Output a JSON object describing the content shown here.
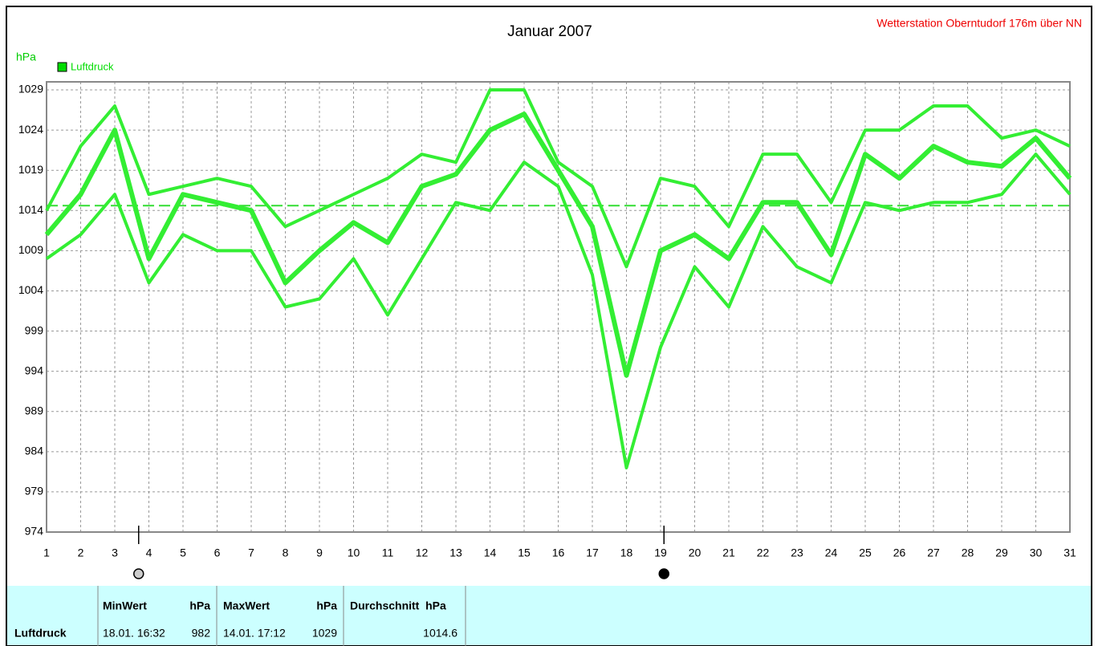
{
  "header": {
    "title": "Januar 2007",
    "station": "Wetterstation Oberntudorf 176m über NN"
  },
  "chart_data": {
    "type": "line",
    "y_label": "hPa",
    "legend": {
      "name": "Luftdruck",
      "color": "#00dd00"
    },
    "x": [
      1,
      2,
      3,
      4,
      5,
      6,
      7,
      8,
      9,
      10,
      11,
      12,
      13,
      14,
      15,
      16,
      17,
      18,
      19,
      20,
      21,
      22,
      23,
      24,
      25,
      26,
      27,
      28,
      29,
      30,
      31
    ],
    "xlim": [
      1,
      31
    ],
    "ylim": [
      974,
      1030
    ],
    "yticks": [
      974,
      979,
      984,
      989,
      994,
      999,
      1004,
      1009,
      1014,
      1019,
      1024,
      1029
    ],
    "grid": true,
    "series": [
      {
        "color": "#33ee33",
        "thick": false,
        "values": [
          1014,
          1022,
          1027,
          1016,
          1017,
          1018,
          1017,
          1012,
          1014,
          1016,
          1018,
          1021,
          1020,
          1029,
          1029,
          1020,
          1017,
          1007,
          1018,
          1017,
          1012,
          1021,
          1021,
          1015,
          1024,
          1024,
          1027,
          1027,
          1023,
          1024,
          1022
        ]
      },
      {
        "color": "#33ee33",
        "thick": true,
        "values": [
          1011,
          1016,
          1024,
          1008,
          1016,
          1015,
          1014,
          1005,
          1009,
          1012.5,
          1010,
          1017,
          1018.5,
          1024,
          1026,
          1019,
          1012,
          993.5,
          1009,
          1011,
          1008,
          1015,
          1015,
          1008.5,
          1021,
          1018,
          1022,
          1020,
          1019.5,
          1023,
          1018
        ]
      },
      {
        "color": "#33ee33",
        "thick": false,
        "values": [
          1008,
          1011,
          1016,
          1005,
          1011,
          1009,
          1009,
          1002,
          1003,
          1008,
          1001,
          1008,
          1015,
          1014,
          1020,
          1017,
          1006,
          982,
          997,
          1007,
          1002,
          1012,
          1007,
          1005,
          1015,
          1014,
          1015,
          1015,
          1016,
          1021,
          1016
        ]
      }
    ],
    "mean_line_color": "#33dd33",
    "moon_phases": [
      {
        "x": 3.7,
        "fill": "#cccccc"
      },
      {
        "x": 19.1,
        "fill": "#000000"
      }
    ]
  },
  "table": {
    "row_label": "Luftdruck",
    "headers": [
      "MinWert",
      "hPa",
      "MaxWert",
      "hPa",
      "Durchschnitt  hPa"
    ],
    "cells": [
      "18.01. 16:32",
      982,
      "14.01. 17:12",
      1029,
      1014.6
    ]
  }
}
